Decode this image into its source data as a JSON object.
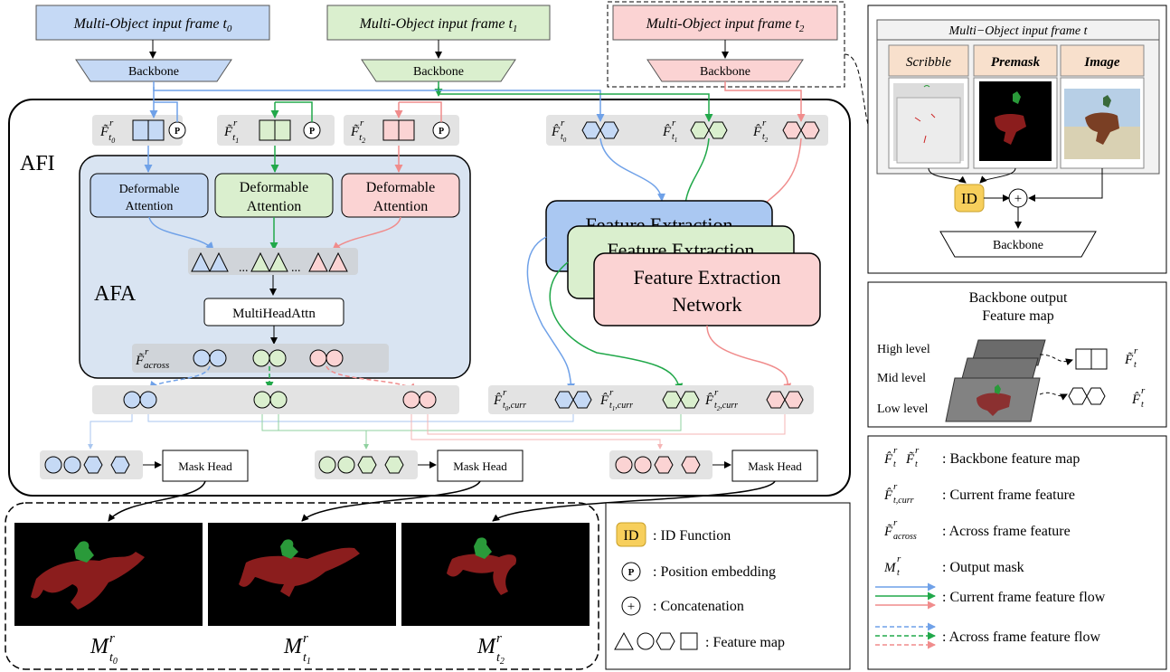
{
  "colors": {
    "blue": "#c5d9f5",
    "blueDark": "#6fa1e8",
    "green": "#daefce",
    "greenDark": "#21a84a",
    "pink": "#fbd3d3",
    "pinkDark": "#f08c8c",
    "gray": "#e3e3e3",
    "afaBg": "#d9e4f2",
    "idBg": "#f7cf5c",
    "idBorder": "#c9a02a"
  },
  "inputs": {
    "t0": {
      "text": "Multi-Object input frame t",
      "sub": "0"
    },
    "t1": {
      "text": "Multi-Object input frame t",
      "sub": "1"
    },
    "t2": {
      "text": "Multi-Object input frame t",
      "sub": "2"
    }
  },
  "backbone": "Backbone",
  "afi": "AFI",
  "afa": "AFA",
  "p_label": "P",
  "deformable": {
    "line1": "Deformable",
    "line2": "Attention"
  },
  "dots": "...",
  "multihead": "MultiHeadAttn",
  "feat": {
    "tilde": "F̃",
    "hat": "F̂",
    "r": "r",
    "t": "t",
    "sub0": "0",
    "sub1": "1",
    "sub2": "2",
    "across": "across",
    "curr": ",curr"
  },
  "fen": {
    "line1": "Feature Extraction",
    "line2": "Network"
  },
  "mask_head": "Mask Head",
  "outputs": {
    "m": "M",
    "r": "r",
    "t": "t",
    "sub0": "0",
    "sub1": "1",
    "sub2": "2"
  },
  "right_panel": {
    "title": "Multi−Object input frame t",
    "scribble": "Scribble",
    "premask": "Premask",
    "image": "Image",
    "id": "ID",
    "plus": "+",
    "backbone": "Backbone"
  },
  "bb_output": {
    "title1": "Backbone output",
    "title2": "Feature map",
    "high": "High level",
    "mid": "Mid level",
    "low": "Low level"
  },
  "legend_mid": {
    "id": {
      "symbol": "ID",
      "text": ": ID Function"
    },
    "pos": {
      "symbol": "P",
      "text": ": Position embedding"
    },
    "concat": {
      "symbol": "+",
      "text": ": Concatenation"
    },
    "feature": {
      "text": ": Feature map"
    }
  },
  "legend_right": {
    "backbone": ": Backbone feature map",
    "current": ": Current frame feature",
    "across": ": Across frame feature",
    "mt": "M",
    "output": ": Output mask",
    "cur_flow": ": Current frame feature flow",
    "across_flow": ": Across frame feature flow"
  }
}
